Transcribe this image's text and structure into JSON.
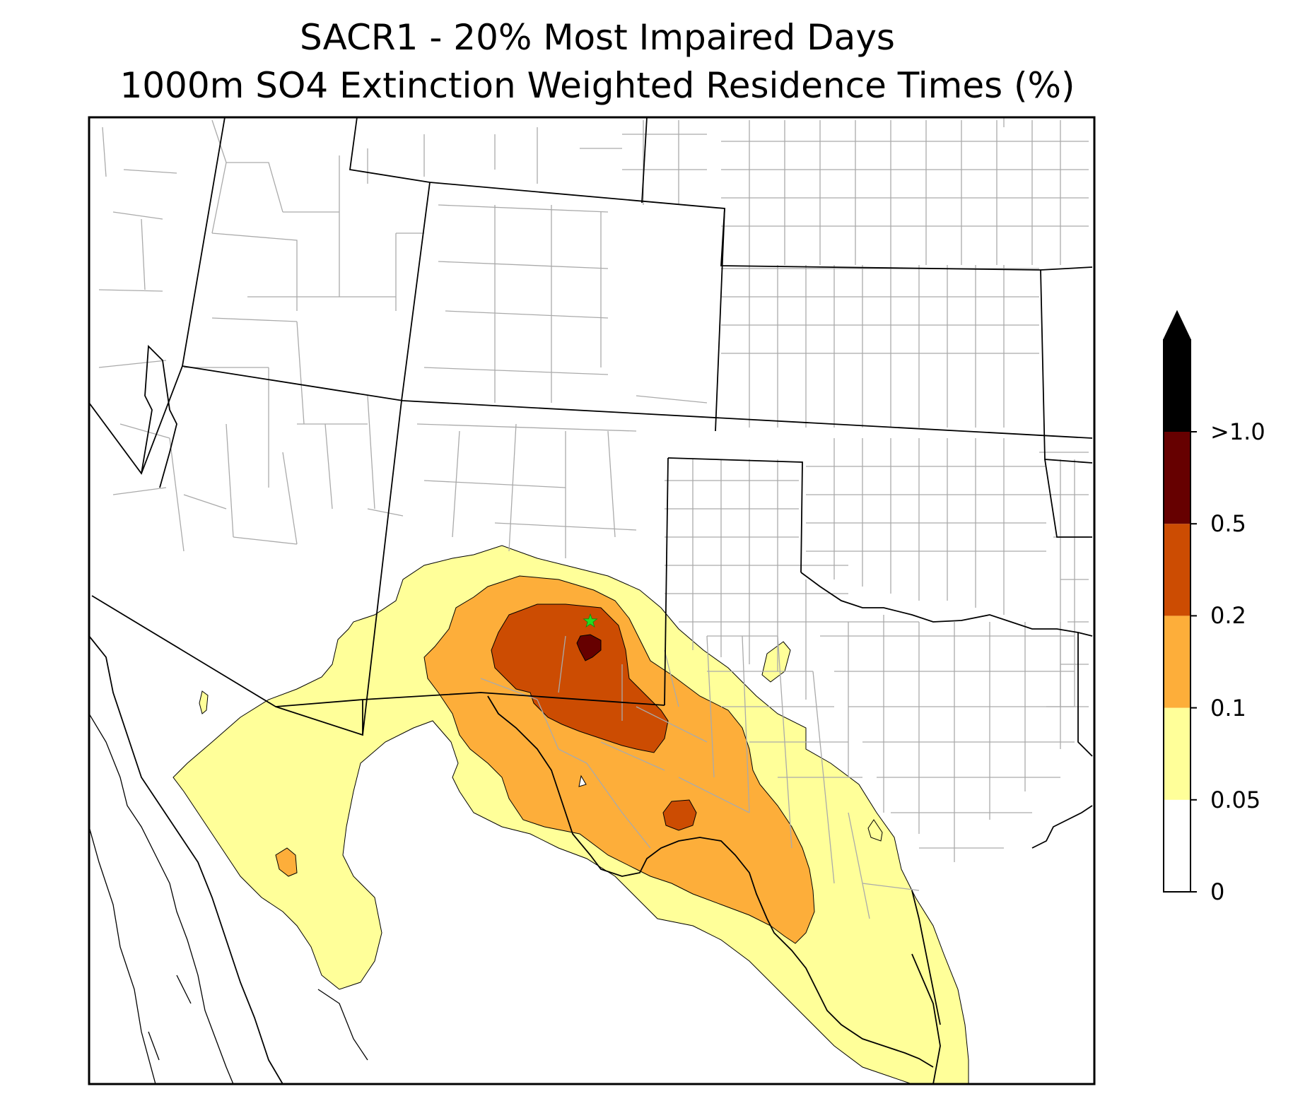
{
  "title": {
    "line1": "SACR1 - 20% Most Impaired Days",
    "line2": "1000m SO4 Extinction Weighted Residence Times (%)"
  },
  "colorbar": {
    "extend": "max",
    "bins": [
      {
        "lower": 0,
        "upper": 0.05,
        "color": "#ffffff"
      },
      {
        "lower": 0.05,
        "upper": 0.1,
        "color": "#ffff99"
      },
      {
        "lower": 0.1,
        "upper": 0.2,
        "color": "#fdae3a"
      },
      {
        "lower": 0.2,
        "upper": 0.5,
        "color": "#cc4c02"
      },
      {
        "lower": 0.5,
        "upper": 1.0,
        "color": "#660000"
      },
      {
        "lower": 1.0,
        "upper": null,
        "color": "#000000"
      }
    ],
    "tick_labels": [
      "0",
      "0.05",
      "0.1",
      "0.2",
      "0.5",
      ">1.0"
    ]
  },
  "map": {
    "site_marker": {
      "symbol": "star",
      "color": "#22dd22"
    },
    "state_line_color": "#000000",
    "county_line_color": "#aaaaaa"
  }
}
